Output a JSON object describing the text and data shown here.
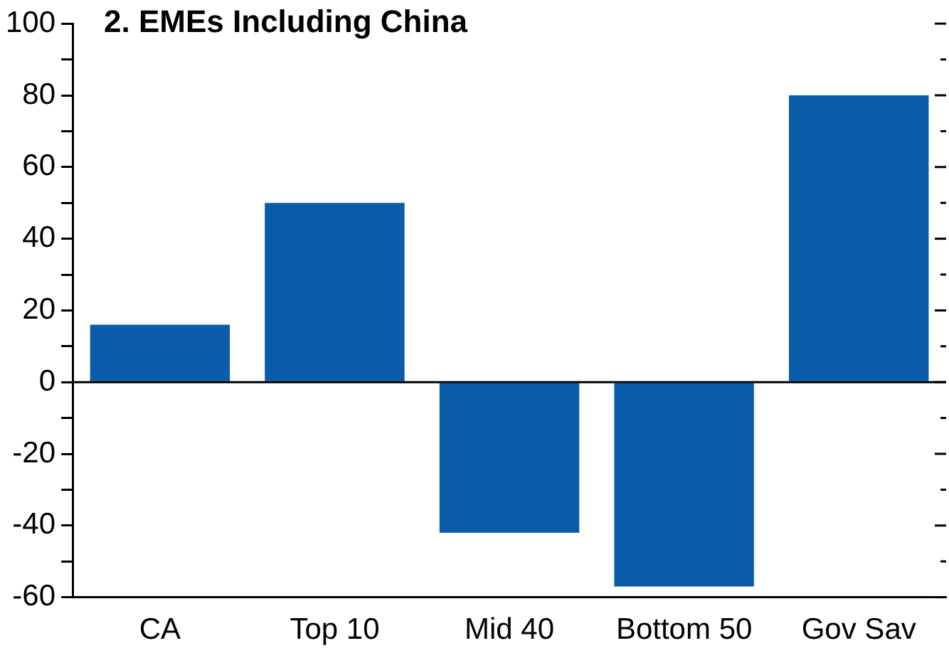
{
  "chart_data": {
    "type": "bar",
    "title": "2. EMEs Including China",
    "categories": [
      "CA",
      "Top 10",
      "Mid 40",
      "Bottom 50",
      "Gov Sav"
    ],
    "values": [
      16,
      50,
      -42,
      -57,
      80
    ],
    "color": "#0a5ca8",
    "ylim": [
      -60,
      100
    ],
    "yticks": [
      -60,
      {
        "value": -50,
        "label": null
      },
      -40,
      {
        "value": -30,
        "label": null
      },
      -20,
      {
        "value": -10,
        "label": null
      },
      0,
      {
        "value": 10,
        "label": null
      },
      20,
      {
        "value": 30,
        "label": null
      },
      40,
      {
        "value": 50,
        "label": null
      },
      60,
      {
        "value": 70,
        "label": null
      },
      80,
      {
        "value": 90,
        "label": null
      },
      100
    ],
    "ref_lines": [
      {
        "axis": "y",
        "value": 0,
        "color": "#000000"
      }
    ],
    "legend": false
  }
}
